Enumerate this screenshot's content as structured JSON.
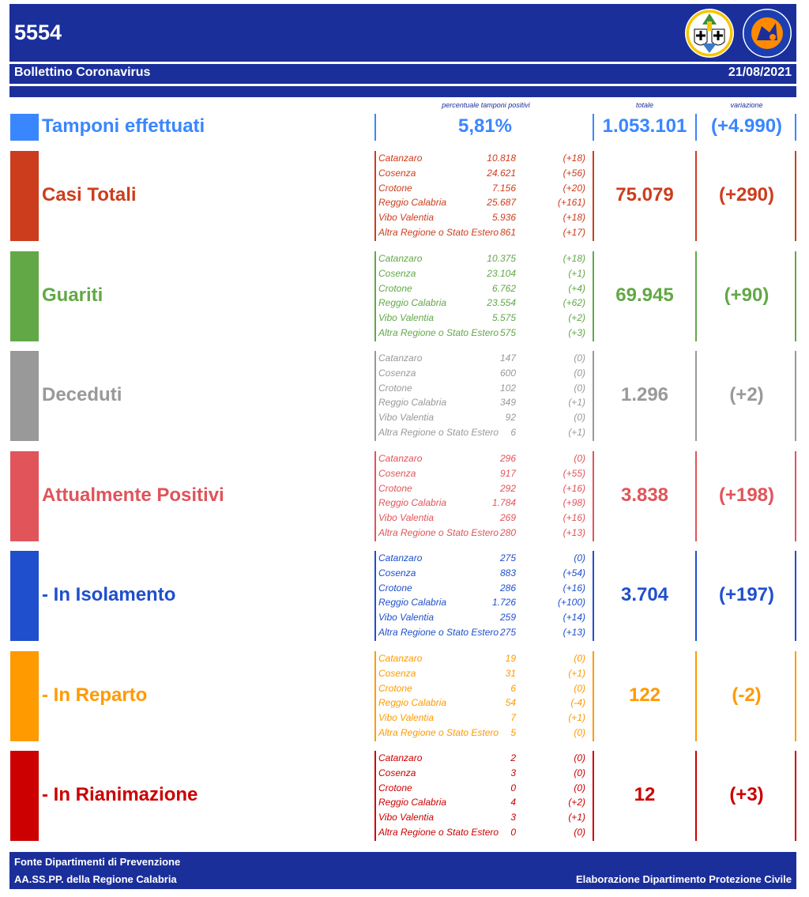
{
  "header": {
    "code": "5554",
    "subtitle": "Bollettino Coronavirus",
    "date": "21/08/2021"
  },
  "columns": {
    "pct": "percentuale tamponi positivi",
    "total": "totale",
    "variation": "variazione"
  },
  "tamponi": {
    "label": "Tamponi effettuati",
    "pct": "5,81%",
    "total": "1.053.101",
    "variation": "(+4.990)",
    "color": "#3a86ff"
  },
  "sections": [
    {
      "id": "casi",
      "label": "Casi Totali",
      "color": "#cc3d1d",
      "total": "75.079",
      "variation": "(+290)",
      "rows": [
        {
          "name": "Catanzaro",
          "value": "10.818",
          "delta": "(+18)"
        },
        {
          "name": "Cosenza",
          "value": "24.621",
          "delta": "(+56)"
        },
        {
          "name": "Crotone",
          "value": "7.156",
          "delta": "(+20)"
        },
        {
          "name": "Reggio Calabria",
          "value": "25.687",
          "delta": "(+161)"
        },
        {
          "name": "Vibo Valentia",
          "value": "5.936",
          "delta": "(+18)"
        },
        {
          "name": "Altra Regione o Stato Estero",
          "value": "861",
          "delta": "(+17)"
        }
      ]
    },
    {
      "id": "guariti",
      "label": "Guariti",
      "color": "#62a847",
      "total": "69.945",
      "variation": "(+90)",
      "rows": [
        {
          "name": "Catanzaro",
          "value": "10.375",
          "delta": "(+18)"
        },
        {
          "name": "Cosenza",
          "value": "23.104",
          "delta": "(+1)"
        },
        {
          "name": "Crotone",
          "value": "6.762",
          "delta": "(+4)"
        },
        {
          "name": "Reggio Calabria",
          "value": "23.554",
          "delta": "(+62)"
        },
        {
          "name": "Vibo Valentia",
          "value": "5.575",
          "delta": "(+2)"
        },
        {
          "name": "Altra Regione o Stato Estero",
          "value": "575",
          "delta": "(+3)"
        }
      ]
    },
    {
      "id": "deceduti",
      "label": "Deceduti",
      "color": "#999999",
      "total": "1.296",
      "variation": "(+2)",
      "rows": [
        {
          "name": "Catanzaro",
          "value": "147",
          "delta": "(0)"
        },
        {
          "name": "Cosenza",
          "value": "600",
          "delta": "(0)"
        },
        {
          "name": "Crotone",
          "value": "102",
          "delta": "(0)"
        },
        {
          "name": "Reggio Calabria",
          "value": "349",
          "delta": "(+1)"
        },
        {
          "name": "Vibo Valentia",
          "value": "92",
          "delta": "(0)"
        },
        {
          "name": "Altra Regione o Stato Estero",
          "value": "6",
          "delta": "(+1)"
        }
      ]
    },
    {
      "id": "attualmente",
      "label": "Attualmente Positivi",
      "color": "#e0545a",
      "total": "3.838",
      "variation": "(+198)",
      "rows": [
        {
          "name": "Catanzaro",
          "value": "296",
          "delta": "(0)"
        },
        {
          "name": "Cosenza",
          "value": "917",
          "delta": "(+55)"
        },
        {
          "name": "Crotone",
          "value": "292",
          "delta": "(+16)"
        },
        {
          "name": "Reggio Calabria",
          "value": "1.784",
          "delta": "(+98)"
        },
        {
          "name": "Vibo Valentia",
          "value": "269",
          "delta": "(+16)"
        },
        {
          "name": "Altra Regione o Stato Estero",
          "value": "280",
          "delta": "(+13)"
        }
      ]
    },
    {
      "id": "isolamento",
      "label": "- In Isolamento",
      "color": "#1f4fcc",
      "total": "3.704",
      "variation": "(+197)",
      "rows": [
        {
          "name": "Catanzaro",
          "value": "275",
          "delta": "(0)"
        },
        {
          "name": "Cosenza",
          "value": "883",
          "delta": "(+54)"
        },
        {
          "name": "Crotone",
          "value": "286",
          "delta": "(+16)"
        },
        {
          "name": "Reggio Calabria",
          "value": "1.726",
          "delta": "(+100)"
        },
        {
          "name": "Vibo Valentia",
          "value": "259",
          "delta": "(+14)"
        },
        {
          "name": "Altra Regione o Stato Estero",
          "value": "275",
          "delta": "(+13)"
        }
      ]
    },
    {
      "id": "reparto",
      "label": "- In Reparto",
      "color": "#ff9a00",
      "total": "122",
      "variation": "(-2)",
      "rows": [
        {
          "name": "Catanzaro",
          "value": "19",
          "delta": "(0)"
        },
        {
          "name": "Cosenza",
          "value": "31",
          "delta": "(+1)"
        },
        {
          "name": "Crotone",
          "value": "6",
          "delta": "(0)"
        },
        {
          "name": "Reggio Calabria",
          "value": "54",
          "delta": "(-4)"
        },
        {
          "name": "Vibo Valentia",
          "value": "7",
          "delta": "(+1)"
        },
        {
          "name": "Altra Regione o Stato Estero",
          "value": "5",
          "delta": "(0)"
        }
      ]
    },
    {
      "id": "rianimazione",
      "label": "- In Rianimazione",
      "color": "#cc0000",
      "total": "12",
      "variation": "(+3)",
      "rows": [
        {
          "name": "Catanzaro",
          "value": "2",
          "delta": "(0)"
        },
        {
          "name": "Cosenza",
          "value": "3",
          "delta": "(0)"
        },
        {
          "name": "Crotone",
          "value": "0",
          "delta": "(0)"
        },
        {
          "name": "Reggio Calabria",
          "value": "4",
          "delta": "(+2)"
        },
        {
          "name": "Vibo Valentia",
          "value": "3",
          "delta": "(+1)"
        },
        {
          "name": "Altra Regione o Stato Estero",
          "value": "0",
          "delta": "(0)"
        }
      ]
    }
  ],
  "footer": {
    "line1": "Fonte Dipartimenti di Prevenzione",
    "line2": "AA.SS.PP.  della Regione Calabria",
    "credit": "Elaborazione Dipartimento Protezione Civile"
  }
}
